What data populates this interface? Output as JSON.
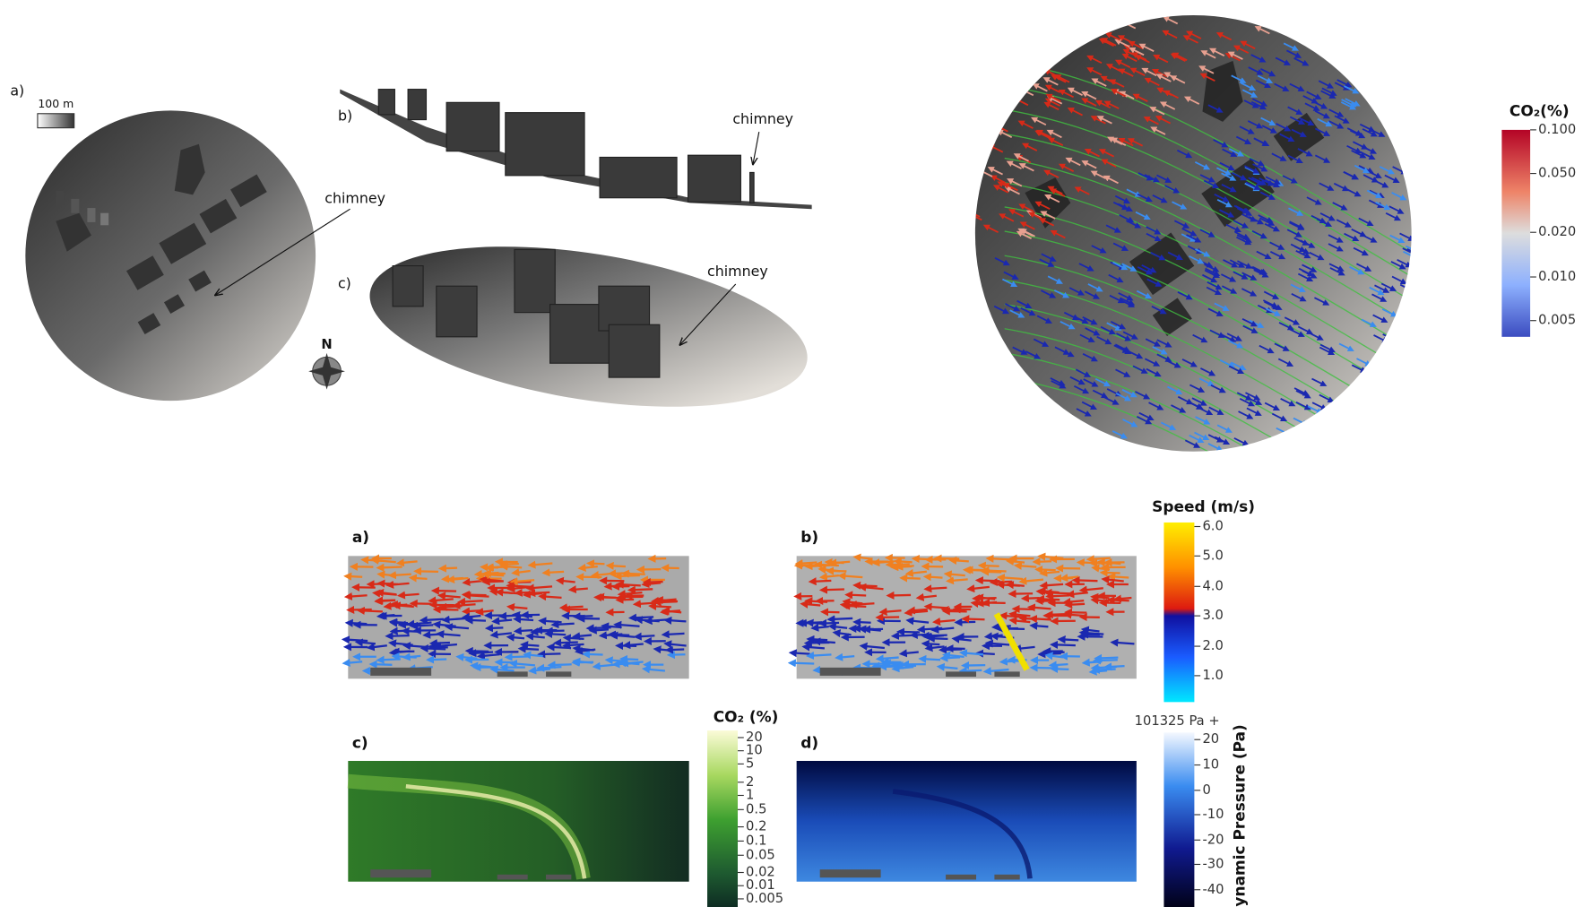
{
  "top": {
    "panel_labels": [
      "a)",
      "b)",
      "c)"
    ],
    "scale_bar": "100 m",
    "compass": "N",
    "chimney_labels": [
      "chimney",
      "chimney",
      "chimney"
    ],
    "colorbar": {
      "title": "CO₂(%)",
      "ticks": [
        "0.100",
        "0.050",
        "0.020",
        "0.010",
        "0.005"
      ]
    }
  },
  "bottom": {
    "panel_labels": [
      "a)",
      "b)",
      "c)",
      "d)"
    ],
    "speed_colorbar": {
      "title": "Speed (m/s)",
      "ticks": [
        "6.0",
        "5.0",
        "4.0",
        "3.0",
        "2.0",
        "1.0"
      ]
    },
    "co2_colorbar": {
      "title": "CO₂ (%)",
      "ticks": [
        "20",
        "10",
        "5",
        "2",
        "1",
        "0.5",
        "0.2",
        "0.1",
        "0.05",
        "0.02",
        "0.01",
        "0.005"
      ]
    },
    "pressure_colorbar": {
      "offset_label": "101325 Pa +",
      "title": "Dynamic Pressure (Pa)",
      "ticks": [
        "20",
        "10",
        "0",
        "-10",
        "-20",
        "-30",
        "-40"
      ]
    }
  }
}
